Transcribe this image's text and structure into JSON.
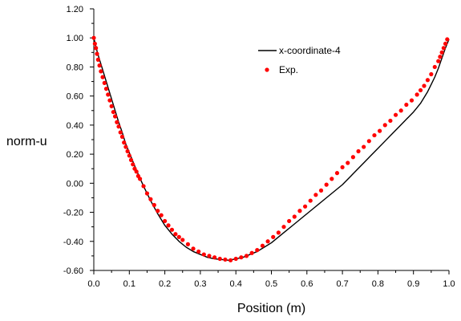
{
  "chart_data": {
    "type": "line",
    "title": "",
    "xlabel": "Position (m)",
    "ylabel": "norm-u",
    "xlim": [
      0,
      1
    ],
    "ylim": [
      -0.6,
      1.2
    ],
    "xticks": [
      "0.0",
      "0.1",
      "0.2",
      "0.3",
      "0.4",
      "0.5",
      "0.6",
      "0.7",
      "0.8",
      "0.9",
      "1.0"
    ],
    "yticks": [
      "-0.60",
      "-0.40",
      "-0.20",
      "0.00",
      "0.20",
      "0.40",
      "0.60",
      "0.80",
      "1.00",
      "1.20"
    ],
    "grid": false,
    "legend_position": "top-right",
    "series": [
      {
        "name": "x-coordinate-4",
        "style": "line",
        "color": "#000000",
        "x": [
          0,
          0.01,
          0.02,
          0.03,
          0.04,
          0.05,
          0.06,
          0.07,
          0.08,
          0.09,
          0.1,
          0.12,
          0.14,
          0.16,
          0.18,
          0.2,
          0.22,
          0.24,
          0.26,
          0.28,
          0.3,
          0.32,
          0.34,
          0.36,
          0.38,
          0.4,
          0.42,
          0.44,
          0.46,
          0.48,
          0.5,
          0.52,
          0.54,
          0.56,
          0.58,
          0.6,
          0.62,
          0.64,
          0.66,
          0.68,
          0.7,
          0.72,
          0.74,
          0.76,
          0.78,
          0.8,
          0.82,
          0.84,
          0.86,
          0.88,
          0.9,
          0.91,
          0.92,
          0.93,
          0.94,
          0.95,
          0.96,
          0.97,
          0.98,
          0.99,
          1.0
        ],
        "y": [
          1.0,
          0.9,
          0.82,
          0.74,
          0.66,
          0.58,
          0.5,
          0.42,
          0.35,
          0.27,
          0.21,
          0.09,
          -0.02,
          -0.12,
          -0.21,
          -0.29,
          -0.35,
          -0.4,
          -0.44,
          -0.47,
          -0.49,
          -0.51,
          -0.52,
          -0.525,
          -0.53,
          -0.52,
          -0.51,
          -0.49,
          -0.47,
          -0.44,
          -0.41,
          -0.37,
          -0.33,
          -0.29,
          -0.25,
          -0.21,
          -0.17,
          -0.13,
          -0.09,
          -0.05,
          -0.01,
          0.04,
          0.09,
          0.14,
          0.19,
          0.24,
          0.29,
          0.34,
          0.39,
          0.44,
          0.49,
          0.52,
          0.55,
          0.59,
          0.63,
          0.68,
          0.73,
          0.79,
          0.86,
          0.93,
          0.99
        ]
      },
      {
        "name": "Exp.",
        "style": "markers",
        "color": "#ff0000",
        "x": [
          0.0,
          0.003,
          0.006,
          0.009,
          0.012,
          0.016,
          0.02,
          0.025,
          0.03,
          0.035,
          0.04,
          0.045,
          0.05,
          0.055,
          0.06,
          0.065,
          0.07,
          0.075,
          0.08,
          0.085,
          0.09,
          0.095,
          0.1,
          0.105,
          0.11,
          0.115,
          0.12,
          0.125,
          0.13,
          0.14,
          0.15,
          0.16,
          0.17,
          0.18,
          0.19,
          0.2,
          0.21,
          0.22,
          0.23,
          0.24,
          0.25,
          0.265,
          0.28,
          0.295,
          0.31,
          0.325,
          0.34,
          0.355,
          0.37,
          0.385,
          0.4,
          0.415,
          0.43,
          0.445,
          0.46,
          0.475,
          0.49,
          0.505,
          0.52,
          0.535,
          0.55,
          0.565,
          0.58,
          0.595,
          0.61,
          0.625,
          0.64,
          0.655,
          0.67,
          0.685,
          0.7,
          0.715,
          0.73,
          0.745,
          0.76,
          0.775,
          0.79,
          0.805,
          0.82,
          0.835,
          0.85,
          0.865,
          0.88,
          0.895,
          0.91,
          0.92,
          0.93,
          0.94,
          0.95,
          0.96,
          0.97,
          0.975,
          0.98,
          0.985,
          0.99,
          0.995
        ],
        "y": [
          1.0,
          0.96,
          0.93,
          0.89,
          0.85,
          0.81,
          0.77,
          0.73,
          0.69,
          0.65,
          0.61,
          0.57,
          0.53,
          0.49,
          0.46,
          0.42,
          0.39,
          0.35,
          0.32,
          0.28,
          0.25,
          0.22,
          0.19,
          0.16,
          0.13,
          0.1,
          0.08,
          0.05,
          0.03,
          -0.02,
          -0.07,
          -0.11,
          -0.15,
          -0.19,
          -0.22,
          -0.26,
          -0.29,
          -0.32,
          -0.35,
          -0.37,
          -0.39,
          -0.42,
          -0.45,
          -0.47,
          -0.49,
          -0.5,
          -0.51,
          -0.52,
          -0.525,
          -0.53,
          -0.52,
          -0.51,
          -0.5,
          -0.48,
          -0.46,
          -0.43,
          -0.4,
          -0.37,
          -0.34,
          -0.3,
          -0.26,
          -0.23,
          -0.19,
          -0.16,
          -0.12,
          -0.08,
          -0.05,
          -0.01,
          0.03,
          0.07,
          0.11,
          0.14,
          0.18,
          0.22,
          0.25,
          0.29,
          0.33,
          0.36,
          0.4,
          0.43,
          0.47,
          0.5,
          0.54,
          0.57,
          0.61,
          0.64,
          0.67,
          0.71,
          0.75,
          0.8,
          0.84,
          0.87,
          0.9,
          0.93,
          0.96,
          0.99
        ]
      }
    ]
  }
}
